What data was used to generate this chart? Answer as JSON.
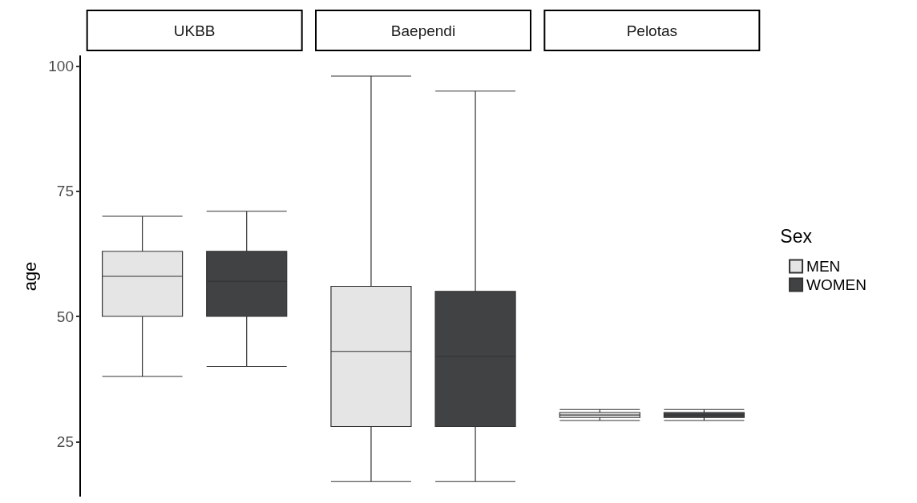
{
  "chart_data": {
    "type": "box",
    "ylabel": "age",
    "categories": [
      "UKBB",
      "Baependi",
      "Pelotas"
    ],
    "ylim": [
      14,
      102
    ],
    "yticks": [
      25,
      50,
      75,
      100
    ],
    "legend": "right",
    "legend_title": "Sex",
    "series": [
      {
        "name": "MEN",
        "color": "#e5e5e5",
        "boxes": [
          {
            "low": 38,
            "q1": 50,
            "median": 58,
            "q3": 63,
            "high": 70
          },
          {
            "low": 17,
            "q1": 28,
            "median": 43,
            "q3": 56,
            "high": 98
          },
          {
            "low": 29.2,
            "q1": 29.8,
            "median": 30.3,
            "q3": 30.8,
            "high": 31.4
          }
        ]
      },
      {
        "name": "WOMEN",
        "color": "#404244",
        "boxes": [
          {
            "low": 40,
            "q1": 50,
            "median": 57,
            "q3": 63,
            "high": 71
          },
          {
            "low": 17,
            "q1": 28,
            "median": 42,
            "q3": 55,
            "high": 95
          },
          {
            "low": 29.2,
            "q1": 29.8,
            "median": 30.3,
            "q3": 30.8,
            "high": 31.4
          }
        ]
      }
    ]
  }
}
